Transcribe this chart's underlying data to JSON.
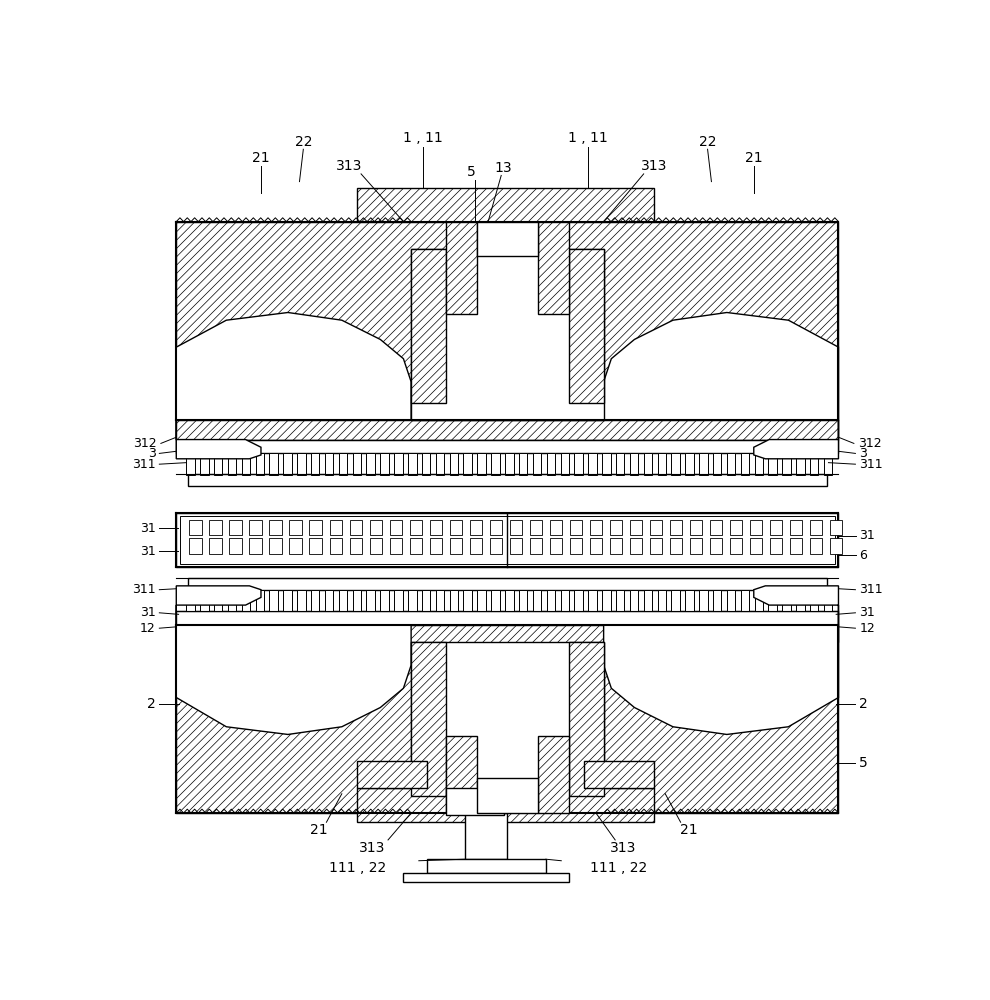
{
  "bg_color": "#ffffff",
  "lw": 1.0,
  "hatch_lw": 0.5,
  "fig_w": 9.9,
  "fig_h": 10.0,
  "dpi": 100
}
